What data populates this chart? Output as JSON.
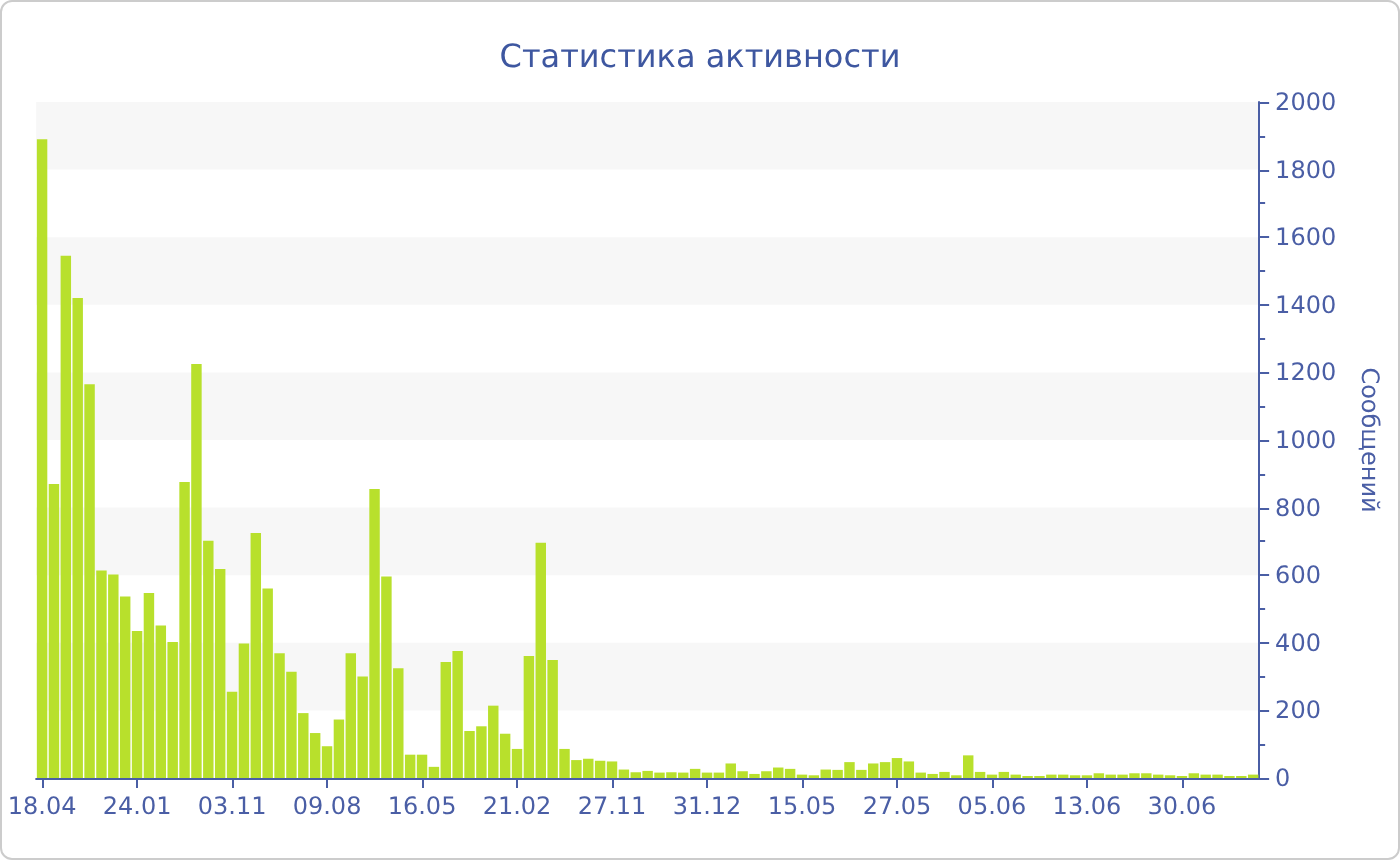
{
  "chart_data": {
    "type": "bar",
    "title": "Статистика активности",
    "ylabel": "Сообщений",
    "categories": [
      "18.04",
      null,
      null,
      null,
      null,
      null,
      null,
      null,
      "24.01",
      null,
      null,
      null,
      null,
      null,
      null,
      null,
      "03.11",
      null,
      null,
      null,
      null,
      null,
      null,
      null,
      "09.08",
      null,
      null,
      null,
      null,
      null,
      null,
      null,
      "16.05",
      null,
      null,
      null,
      null,
      null,
      null,
      null,
      "21.02",
      null,
      null,
      null,
      null,
      null,
      null,
      null,
      "27.11",
      null,
      null,
      null,
      null,
      null,
      null,
      null,
      "31.12",
      null,
      null,
      null,
      null,
      null,
      null,
      null,
      "15.05",
      null,
      null,
      null,
      null,
      null,
      null,
      null,
      "27.05",
      null,
      null,
      null,
      null,
      null,
      null,
      null,
      "05.06",
      null,
      null,
      null,
      null,
      null,
      null,
      null,
      "13.06",
      null,
      null,
      null,
      null,
      null,
      null,
      null,
      "30.06",
      null,
      null,
      null,
      null,
      null,
      null
    ],
    "values": [
      1890,
      870,
      1545,
      1420,
      1165,
      614,
      602,
      537,
      435,
      547,
      451,
      402,
      876,
      1225,
      702,
      618,
      255,
      398,
      725,
      561,
      369,
      314,
      192,
      133,
      94,
      173,
      369,
      300,
      855,
      596,
      325,
      69,
      69,
      33,
      343,
      376,
      139,
      153,
      214,
      131,
      86,
      361,
      696,
      349,
      86,
      53,
      57,
      51,
      49,
      25,
      17,
      21,
      16,
      17,
      16,
      27,
      16,
      16,
      43,
      20,
      12,
      20,
      31,
      27,
      10,
      8,
      25,
      24,
      47,
      24,
      43,
      47,
      59,
      49,
      16,
      12,
      18,
      8,
      67,
      18,
      10,
      18,
      10,
      6,
      6,
      10,
      10,
      8,
      8,
      14,
      10,
      10,
      14,
      14,
      10,
      8,
      6,
      14,
      10,
      10,
      6,
      6,
      10
    ],
    "color": "#b8e02c",
    "ylim": [
      0,
      2000
    ],
    "yticks": [
      0,
      200,
      400,
      600,
      800,
      1000,
      1200,
      1400,
      1600,
      1800,
      2000
    ],
    "bands": [
      {
        "axis": "y",
        "from": 200,
        "to": 400,
        "color": "#f7f7f7"
      },
      {
        "axis": "y",
        "from": 600,
        "to": 800,
        "color": "#f7f7f7"
      },
      {
        "axis": "y",
        "from": 1000,
        "to": 1200,
        "color": "#f7f7f7"
      },
      {
        "axis": "y",
        "from": 1400,
        "to": 1600,
        "color": "#f7f7f7"
      },
      {
        "axis": "y",
        "from": 1800,
        "to": 2000,
        "color": "#f7f7f7"
      }
    ]
  }
}
